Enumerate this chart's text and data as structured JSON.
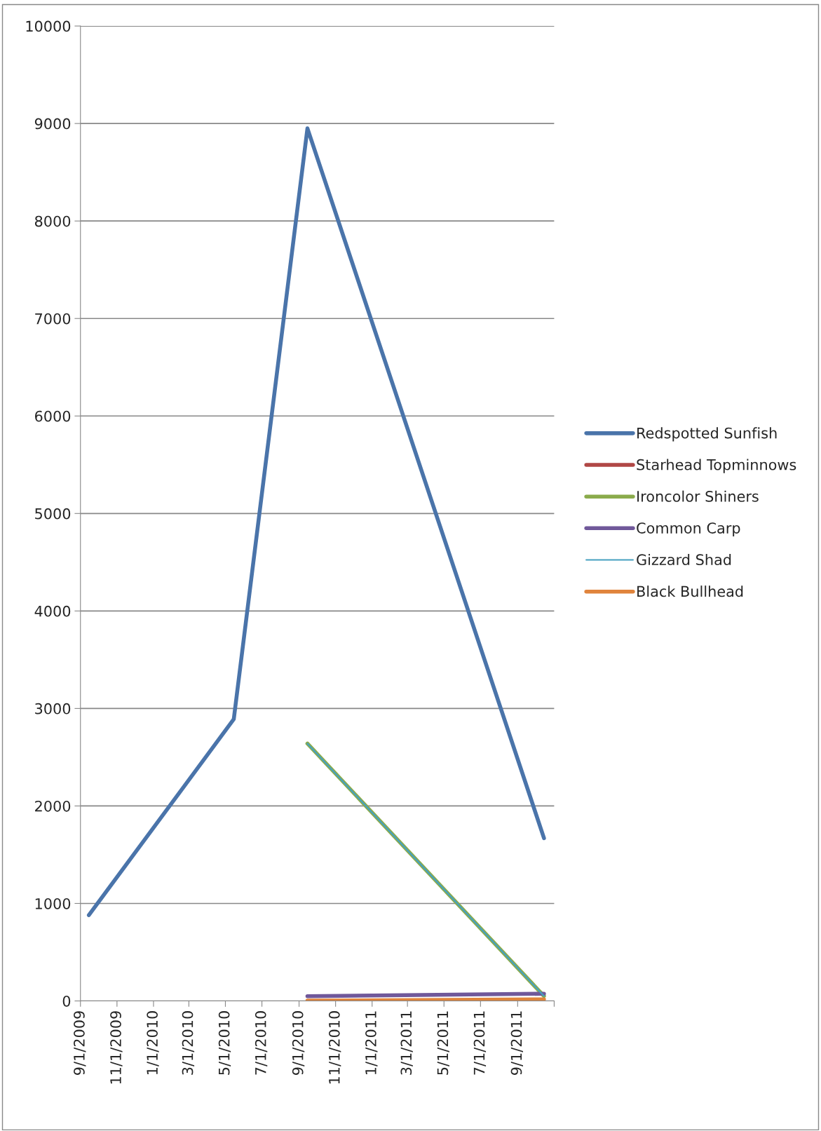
{
  "chart_data": {
    "type": "line",
    "x": [
      "2009-09-15",
      "2010-05-15",
      "2010-09-15",
      "2011-10-15"
    ],
    "series": [
      {
        "name": "Redspotted Sunfish",
        "color": "#4a74aa",
        "values": [
          880,
          2890,
          8950,
          1670
        ]
      },
      {
        "name": "Starhead Topminnows",
        "color": "#b04745",
        "values": [
          null,
          null,
          null,
          null
        ]
      },
      {
        "name": "Ironcolor Shiners",
        "color": "#8bab4c",
        "values": [
          null,
          null,
          2640,
          50
        ]
      },
      {
        "name": "Common Carp",
        "color": "#70589a",
        "values": [
          null,
          null,
          48,
          74
        ]
      },
      {
        "name": "Gizzard Shad",
        "color": "#45a0c0",
        "values": [
          null,
          null,
          2640,
          50
        ]
      },
      {
        "name": "Black Bullhead",
        "color": "#e0843c",
        "values": [
          null,
          null,
          3,
          16
        ]
      }
    ],
    "xlim": [
      "2009-09-01",
      "2011-11-01"
    ],
    "xticks": [
      {
        "value": "2009-09-01",
        "label": "9/1/2009"
      },
      {
        "value": "2009-11-01",
        "label": "11/1/2009"
      },
      {
        "value": "2010-01-01",
        "label": "1/1/2010"
      },
      {
        "value": "2010-03-01",
        "label": "3/1/2010"
      },
      {
        "value": "2010-05-01",
        "label": "5/1/2010"
      },
      {
        "value": "2010-07-01",
        "label": "7/1/2010"
      },
      {
        "value": "2010-09-01",
        "label": "9/1/2010"
      },
      {
        "value": "2010-11-01",
        "label": "11/1/2010"
      },
      {
        "value": "2011-01-01",
        "label": "1/1/2011"
      },
      {
        "value": "2011-03-01",
        "label": "3/1/2011"
      },
      {
        "value": "2011-05-01",
        "label": "5/1/2011"
      },
      {
        "value": "2011-07-01",
        "label": "7/1/2011"
      },
      {
        "value": "2011-09-01",
        "label": "9/1/2011"
      },
      {
        "value": "2011-11-01",
        "label": null
      }
    ],
    "ylim": [
      0,
      10000
    ],
    "yticks": [
      0,
      1000,
      2000,
      3000,
      4000,
      5000,
      6000,
      7000,
      8000,
      9000,
      10000
    ],
    "grid": "y",
    "legend": "right",
    "line_style": "solid"
  }
}
